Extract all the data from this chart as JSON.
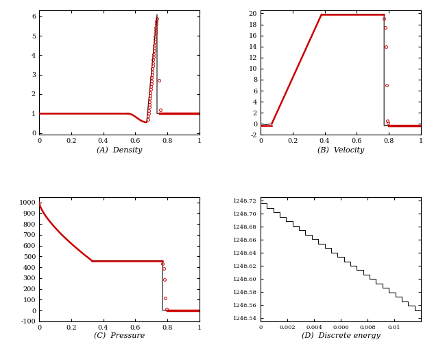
{
  "density": {
    "ylim": [
      -0.1,
      6.3
    ],
    "xlim": [
      0,
      1
    ],
    "yticks": [
      0,
      1,
      2,
      3,
      4,
      5,
      6
    ],
    "xticks": [
      0,
      0.2,
      0.4,
      0.6,
      0.8,
      1.0
    ],
    "xlabel": "(A)  Density"
  },
  "velocity": {
    "ylim": [
      -2,
      20.5
    ],
    "xlim": [
      0,
      1
    ],
    "yticks": [
      -2,
      0,
      2,
      4,
      6,
      8,
      10,
      12,
      14,
      16,
      18,
      20
    ],
    "xticks": [
      0,
      0.2,
      0.4,
      0.6,
      0.8,
      1.0
    ],
    "xlabel": "(B)  Velocity"
  },
  "pressure": {
    "ylim": [
      -100,
      1050
    ],
    "xlim": [
      0,
      1
    ],
    "yticks": [
      -100,
      0,
      100,
      200,
      300,
      400,
      500,
      600,
      700,
      800,
      900,
      1000
    ],
    "xticks": [
      0,
      0.2,
      0.4,
      0.6,
      0.8,
      1.0
    ],
    "xlabel": "(C)  Pressure"
  },
  "discrete_energy": {
    "ylim": [
      1248.535,
      1248.725
    ],
    "xlim": [
      0,
      0.012
    ],
    "yticks": [
      1248.54,
      1248.56,
      1248.58,
      1248.6,
      1248.62,
      1248.64,
      1248.66,
      1248.68,
      1248.7,
      1248.72
    ],
    "xticks": [
      0,
      0.002,
      0.004,
      0.006,
      0.008,
      0.01
    ],
    "xlabel": "(D)  Discrete energy"
  },
  "line_color": "#cc0000",
  "exact_color": "#111111",
  "marker_color": "#cc0000",
  "background_color": "#ffffff"
}
